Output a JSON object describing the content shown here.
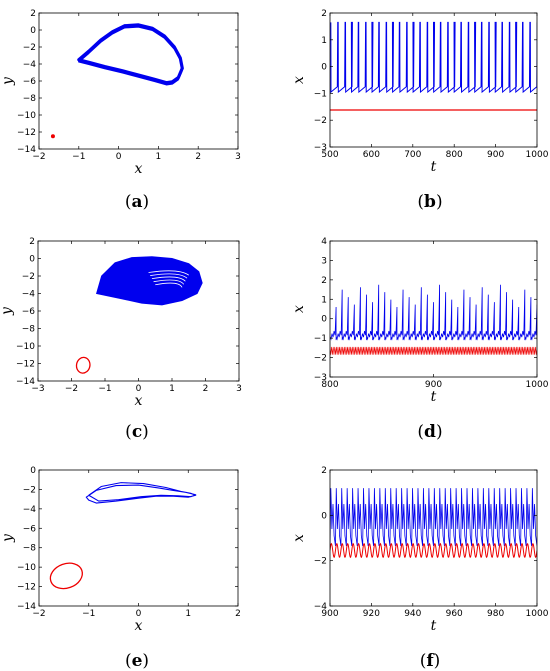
{
  "figure": {
    "panels": [
      "(a)",
      "(b)",
      "(c)",
      "(d)",
      "(e)",
      "(f)"
    ]
  },
  "colors": {
    "series_1": "#0000ee",
    "series_2": "#ee0000"
  },
  "chart_data": [
    {
      "id": "a",
      "type": "line",
      "label": "(a)",
      "xlabel": "x",
      "ylabel": "y",
      "xlim": [
        -2,
        3
      ],
      "ylim": [
        -14,
        2
      ],
      "xticks": [
        -2,
        -1,
        0,
        1,
        2,
        3
      ],
      "yticks": [
        2,
        0,
        -2,
        -4,
        -6,
        -8,
        -10,
        -12,
        -14
      ],
      "grid": false,
      "series": [
        {
          "color": "#0000ee",
          "shape": "closed-loop-band",
          "x": [
            -1.0,
            -0.75,
            -0.45,
            -0.15,
            0.15,
            0.5,
            0.85,
            1.15,
            1.4,
            1.55,
            1.6,
            1.5,
            1.35,
            1.2,
            0.9,
            0.5,
            0.1,
            -0.35,
            -0.75,
            -1.0
          ],
          "y": [
            -3.5,
            -2.5,
            -1.2,
            -0.2,
            0.5,
            0.6,
            0.2,
            -0.7,
            -2.0,
            -3.3,
            -4.5,
            -5.6,
            -6.1,
            -6.2,
            -5.8,
            -5.3,
            -4.8,
            -4.3,
            -3.8,
            -3.5
          ]
        },
        {
          "color": "#ee0000",
          "shape": "point",
          "x": [
            -1.65
          ],
          "y": [
            -12.5
          ]
        }
      ]
    },
    {
      "id": "b",
      "type": "line",
      "label": "(b)",
      "xlabel": "t",
      "ylabel": "x",
      "xlim": [
        500,
        1000
      ],
      "ylim": [
        -3,
        2
      ],
      "xticks": [
        500,
        600,
        700,
        800,
        900,
        1000
      ],
      "yticks": [
        2,
        1,
        0,
        -1,
        -2,
        -3
      ],
      "grid": false,
      "series": [
        {
          "color": "#0000ee",
          "shape": "spike-train",
          "spikes": 30,
          "baseline": -0.9,
          "peak": 1.65,
          "trough": -0.95
        },
        {
          "color": "#ee0000",
          "shape": "constant",
          "value": -1.62
        }
      ]
    },
    {
      "id": "c",
      "type": "line",
      "label": "(c)",
      "xlabel": "x",
      "ylabel": "y",
      "xlim": [
        -3,
        3
      ],
      "ylim": [
        -14,
        2
      ],
      "xticks": [
        -3,
        -2,
        -1,
        0,
        1,
        2,
        3
      ],
      "yticks": [
        2,
        0,
        -2,
        -4,
        -6,
        -8,
        -10,
        -12,
        -14
      ],
      "grid": false,
      "series": [
        {
          "color": "#0000ee",
          "shape": "filled-attractor",
          "x": [
            -1.25,
            -1.1,
            -0.7,
            -0.2,
            0.4,
            1.0,
            1.5,
            1.8,
            1.9,
            1.75,
            1.3,
            0.7,
            0.1,
            -0.5,
            -1.0,
            -1.25
          ],
          "y": [
            -4.0,
            -2.0,
            -0.5,
            0.1,
            0.2,
            0.0,
            -0.6,
            -1.5,
            -2.8,
            -4.0,
            -4.8,
            -5.3,
            -5.1,
            -4.6,
            -4.2,
            -4.0
          ]
        },
        {
          "color": "#ee0000",
          "shape": "ellipse",
          "cx": -1.65,
          "cy": -12.2,
          "rx": 0.2,
          "ry": 0.9
        }
      ]
    },
    {
      "id": "d",
      "type": "line",
      "label": "(d)",
      "xlabel": "t",
      "ylabel": "x",
      "xlim": [
        800,
        1000
      ],
      "ylim": [
        -3,
        4
      ],
      "xticks": [
        800,
        900,
        1000
      ],
      "yticks": [
        4,
        3,
        2,
        1,
        0,
        -1,
        -2,
        -3
      ],
      "grid": false,
      "series": [
        {
          "color": "#0000ee",
          "shape": "bursting-spikes",
          "spikes": 34,
          "baseline": -0.9,
          "peak_range": [
            0.6,
            1.75
          ],
          "trough": -1.1
        },
        {
          "color": "#ee0000",
          "shape": "fast-oscillation-band",
          "range": [
            -1.85,
            -1.45
          ]
        }
      ]
    },
    {
      "id": "e",
      "type": "line",
      "label": "(e)",
      "xlabel": "x",
      "ylabel": "y",
      "xlim": [
        -2,
        2
      ],
      "ylim": [
        -14,
        0
      ],
      "xticks": [
        -2,
        -1,
        0,
        1,
        2
      ],
      "yticks": [
        0,
        -2,
        -4,
        -6,
        -8,
        -10,
        -12,
        -14
      ],
      "grid": false,
      "series": [
        {
          "color": "#0000ee",
          "shape": "figure-eight",
          "x": [
            -1.0,
            -0.75,
            -0.35,
            0.1,
            0.55,
            0.85,
            1.05,
            1.15,
            1.0,
            0.7,
            0.35,
            0.0,
            -0.45,
            -0.85,
            -1.0,
            -1.05,
            -0.85,
            -0.45,
            0.0,
            0.4,
            0.7,
            0.95,
            1.15,
            1.05,
            0.8,
            0.45,
            0.05,
            -0.4,
            -0.8,
            -1.0
          ],
          "y": [
            -2.6,
            -1.7,
            -1.3,
            -1.4,
            -1.8,
            -2.2,
            -2.4,
            -2.6,
            -2.8,
            -2.7,
            -2.7,
            -2.9,
            -3.2,
            -3.4,
            -3.1,
            -2.8,
            -2.1,
            -1.6,
            -1.55,
            -1.85,
            -2.1,
            -2.3,
            -2.55,
            -2.75,
            -2.65,
            -2.6,
            -2.75,
            -3.05,
            -3.2,
            -2.6
          ]
        },
        {
          "color": "#ee0000",
          "shape": "ellipse",
          "cx": -1.45,
          "cy": -10.9,
          "rx": 0.33,
          "ry": 1.25
        }
      ]
    },
    {
      "id": "f",
      "type": "line",
      "label": "(f)",
      "xlabel": "t",
      "ylabel": "x",
      "xlim": [
        900,
        1000
      ],
      "ylim": [
        -4,
        2
      ],
      "xticks": [
        900,
        920,
        940,
        960,
        980,
        1000
      ],
      "yticks": [
        2,
        0,
        -2,
        -4
      ],
      "grid": false,
      "series": [
        {
          "color": "#0000ee",
          "shape": "periodic-spikes",
          "cycles": 38,
          "peak": 1.2,
          "trough": -1.35
        },
        {
          "color": "#ee0000",
          "shape": "sinusoid",
          "cycles": 38,
          "max": -1.25,
          "min": -1.85
        }
      ]
    }
  ]
}
